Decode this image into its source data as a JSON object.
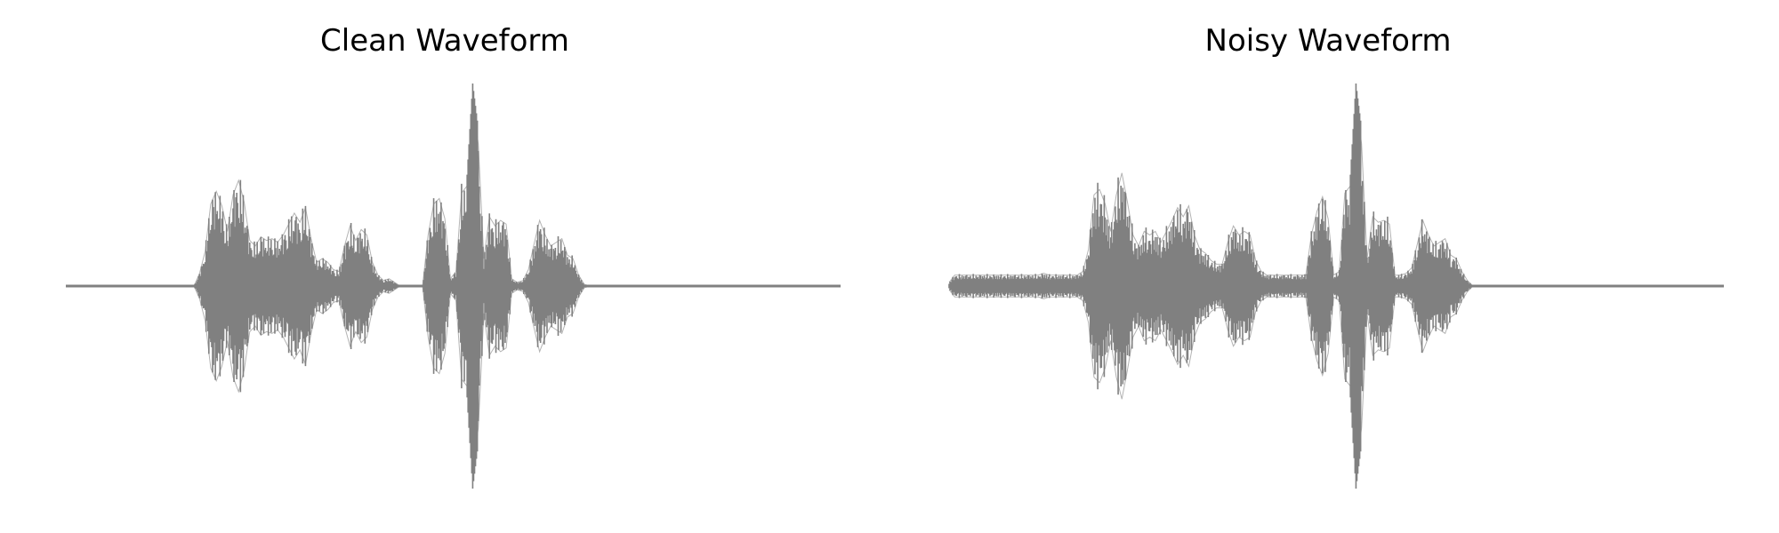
{
  "chart_data": [
    {
      "type": "line",
      "title": "Clean Waveform",
      "xlabel": "",
      "ylabel": "",
      "axes_visible": false,
      "grid": false,
      "legend": "none",
      "line_color": "#808080",
      "series": [
        {
          "values": [
            0.0,
            0.0,
            0.0,
            0.0,
            0.0,
            0.0,
            0.0,
            0.0,
            0.0,
            0.0,
            0.0,
            0.0,
            0.0,
            0.0,
            0.0,
            0.0,
            0.0,
            0.0,
            0.0,
            0.0,
            0.0,
            0.0,
            0.0,
            0.0,
            0.07,
            0.19,
            0.45,
            0.52,
            0.44,
            0.3,
            0.5,
            0.58,
            0.46,
            0.25,
            0.22,
            0.27,
            0.25,
            0.26,
            0.24,
            0.28,
            0.34,
            0.4,
            0.35,
            0.43,
            0.26,
            0.13,
            0.15,
            0.13,
            0.09,
            0.08,
            0.22,
            0.33,
            0.25,
            0.31,
            0.28,
            0.13,
            0.06,
            0.03,
            0.04,
            0.02,
            0.0,
            0.0,
            0.0,
            0.0,
            0.0,
            0.28,
            0.45,
            0.48,
            0.37,
            0.04,
            0.08,
            0.51,
            0.55,
            1.0,
            0.78,
            0.15,
            0.38,
            0.33,
            0.36,
            0.34,
            0.04,
            0.02,
            0.03,
            0.09,
            0.23,
            0.36,
            0.28,
            0.22,
            0.24,
            0.26,
            0.17,
            0.15,
            0.06,
            0.01,
            0.0,
            0.0,
            0.0,
            0.0,
            0.0,
            0.0,
            0.0,
            0.0,
            0.0,
            0.0,
            0.0,
            0.0,
            0.0,
            0.0,
            0.0,
            0.0,
            0.0,
            0.0,
            0.0,
            0.0,
            0.0,
            0.0,
            0.0,
            0.0,
            0.0,
            0.0,
            0.0,
            0.0,
            0.0,
            0.0,
            0.0,
            0.0,
            0.0,
            0.0,
            0.0,
            0.0,
            0.0,
            0.0,
            0.0,
            0.0,
            0.0,
            0.0,
            0.0,
            0.0,
            0.0,
            0.0
          ]
        }
      ]
    },
    {
      "type": "line",
      "title": "Noisy Waveform",
      "xlabel": "",
      "ylabel": "",
      "axes_visible": false,
      "grid": false,
      "legend": "none",
      "line_color": "#808080",
      "series": [
        {
          "values": [
            0.02,
            0.06,
            0.06,
            0.06,
            0.06,
            0.06,
            0.06,
            0.06,
            0.06,
            0.06,
            0.06,
            0.06,
            0.06,
            0.06,
            0.06,
            0.06,
            0.06,
            0.07,
            0.06,
            0.06,
            0.06,
            0.06,
            0.06,
            0.06,
            0.08,
            0.2,
            0.5,
            0.53,
            0.45,
            0.3,
            0.5,
            0.62,
            0.46,
            0.28,
            0.22,
            0.3,
            0.28,
            0.3,
            0.24,
            0.3,
            0.36,
            0.43,
            0.38,
            0.44,
            0.28,
            0.2,
            0.18,
            0.14,
            0.12,
            0.12,
            0.24,
            0.33,
            0.28,
            0.3,
            0.28,
            0.14,
            0.08,
            0.06,
            0.06,
            0.06,
            0.06,
            0.06,
            0.06,
            0.06,
            0.06,
            0.28,
            0.41,
            0.49,
            0.37,
            0.06,
            0.08,
            0.51,
            0.55,
            1.0,
            0.78,
            0.15,
            0.38,
            0.35,
            0.36,
            0.34,
            0.06,
            0.06,
            0.07,
            0.1,
            0.23,
            0.36,
            0.28,
            0.22,
            0.24,
            0.26,
            0.17,
            0.15,
            0.08,
            0.03,
            0.0,
            0.0,
            0.0,
            0.0,
            0.0,
            0.0,
            0.0,
            0.0,
            0.0,
            0.0,
            0.0,
            0.0,
            0.0,
            0.0,
            0.0,
            0.0,
            0.0,
            0.0,
            0.0,
            0.0,
            0.0,
            0.0,
            0.0,
            0.0,
            0.0,
            0.0,
            0.0,
            0.0,
            0.0,
            0.0,
            0.0,
            0.0,
            0.0,
            0.0,
            0.0,
            0.0,
            0.0,
            0.0,
            0.0,
            0.0,
            0.0,
            0.0,
            0.0,
            0.0,
            0.0,
            0.0
          ]
        }
      ]
    }
  ]
}
